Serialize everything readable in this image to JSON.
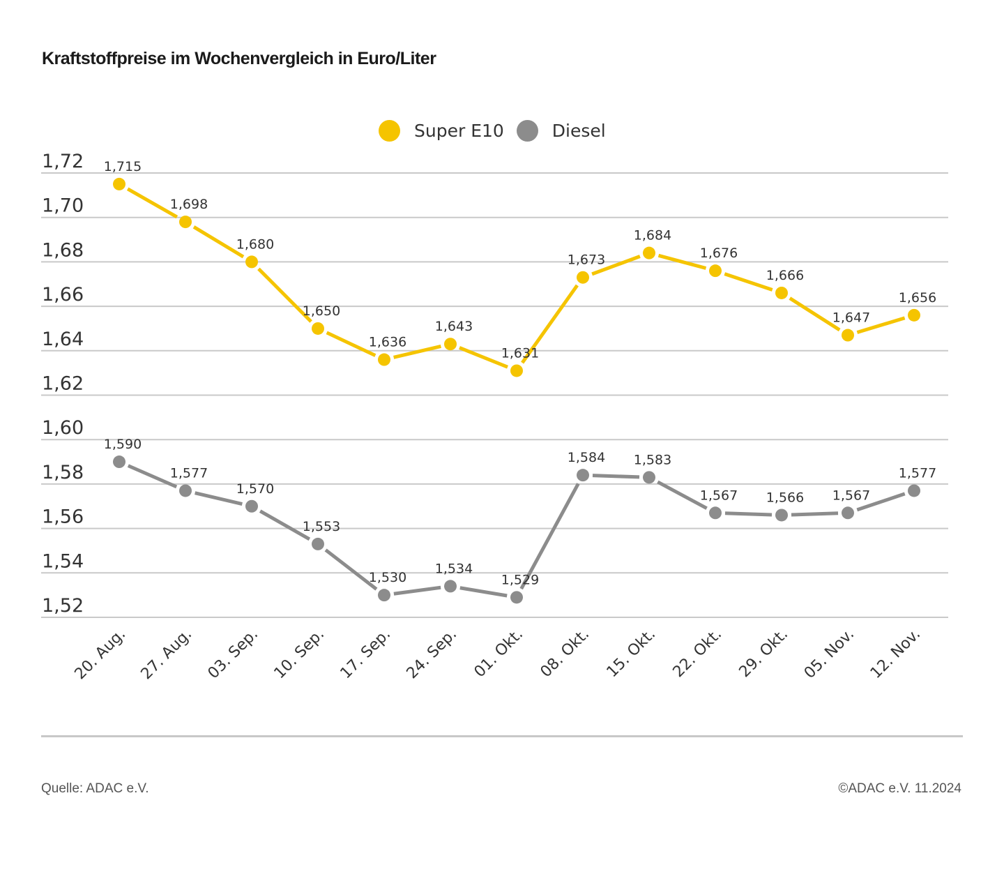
{
  "chart_data": {
    "type": "line",
    "title": "Kraftstoffpreise im Wochenvergleich in Euro/Liter",
    "xlabel": "",
    "ylabel": "",
    "categories": [
      "20. Aug.",
      "27. Aug.",
      "03. Sep.",
      "10. Sep.",
      "17. Sep.",
      "24. Sep.",
      "01. Okt.",
      "08. Okt.",
      "15. Okt.",
      "22. Okt.",
      "29. Okt.",
      "05. Nov.",
      "12. Nov."
    ],
    "ylim": [
      1.52,
      1.72
    ],
    "yticks": [
      1.72,
      1.7,
      1.68,
      1.66,
      1.64,
      1.62,
      1.6,
      1.58,
      1.56,
      1.54,
      1.52
    ],
    "ytick_labels": [
      "1,72",
      "1,70",
      "1,68",
      "1,66",
      "1,64",
      "1,62",
      "1,60",
      "1,58",
      "1,56",
      "1,54",
      "1,52"
    ],
    "grid": true,
    "legend_position": "top-center",
    "series": [
      {
        "name": "Super E10",
        "color": "#f5c400",
        "values": [
          1.715,
          1.698,
          1.68,
          1.65,
          1.636,
          1.643,
          1.631,
          1.673,
          1.684,
          1.676,
          1.666,
          1.647,
          1.656
        ],
        "labels": [
          "1,715",
          "1,698",
          "1,680",
          "1,650",
          "1,636",
          "1,643",
          "1,631",
          "1,673",
          "1,684",
          "1,676",
          "1,666",
          "1,647",
          "1,656"
        ]
      },
      {
        "name": "Diesel",
        "color": "#8c8c8c",
        "values": [
          1.59,
          1.577,
          1.57,
          1.553,
          1.53,
          1.534,
          1.529,
          1.584,
          1.583,
          1.567,
          1.566,
          1.567,
          1.577
        ],
        "labels": [
          "1,590",
          "1,577",
          "1,570",
          "1,553",
          "1,530",
          "1,534",
          "1,529",
          "1,584",
          "1,583",
          "1,567",
          "1,566",
          "1,567",
          "1,577"
        ]
      }
    ]
  },
  "footer": {
    "source": "Quelle: ADAC e.V.",
    "copyright": "©ADAC e.V. 11.2024"
  },
  "colors": {
    "gridline": "#c9c9c9",
    "text": "#333333"
  }
}
